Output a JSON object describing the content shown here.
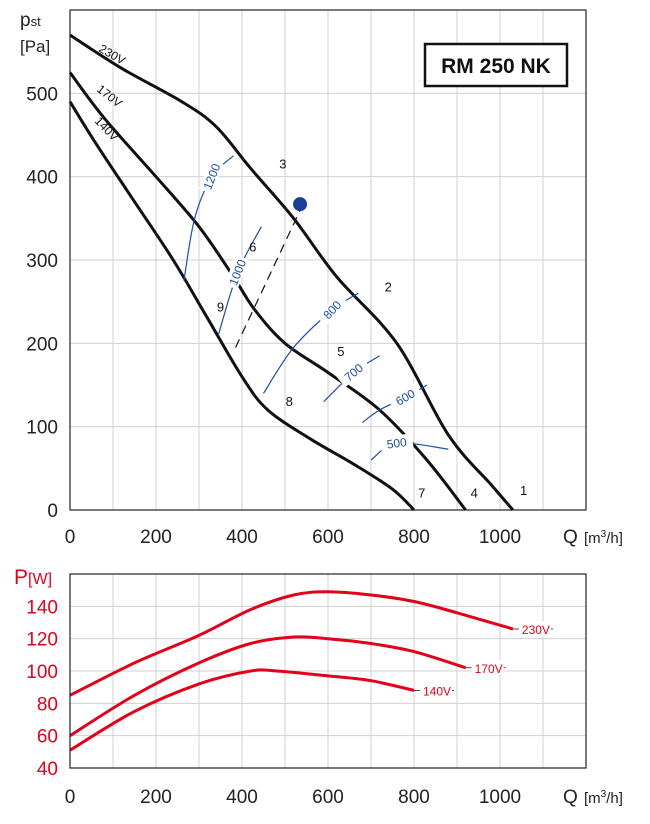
{
  "chart_data": [
    {
      "type": "line",
      "title": "RM 250 NK",
      "ylabel_main": "p",
      "ylabel_sub": "st",
      "ylabel_unit": "[Pa]",
      "xlabel": "Q",
      "xlabel_unit_pre": "[m",
      "xlabel_unit_sup": "3",
      "xlabel_unit_post": "/h]",
      "xlim": [
        0,
        1200
      ],
      "ylim": [
        0,
        600
      ],
      "xticks": [
        0,
        200,
        400,
        600,
        800,
        1000
      ],
      "yticks": [
        0,
        100,
        200,
        300,
        400,
        500
      ],
      "grid": true,
      "series": [
        {
          "name": "230V",
          "x": [
            0,
            120,
            260,
            340,
            420,
            520,
            620,
            760,
            880,
            980,
            1030
          ],
          "y": [
            570,
            530,
            490,
            460,
            410,
            350,
            280,
            200,
            90,
            30,
            0
          ]
        },
        {
          "name": "170V",
          "x": [
            0,
            80,
            200,
            300,
            380,
            430,
            500,
            600,
            720,
            830,
            920
          ],
          "y": [
            525,
            470,
            400,
            340,
            280,
            240,
            200,
            165,
            120,
            60,
            0
          ]
        },
        {
          "name": "140V",
          "x": [
            0,
            60,
            150,
            240,
            320,
            400,
            460,
            560,
            660,
            750,
            800
          ],
          "y": [
            490,
            440,
            370,
            300,
            230,
            160,
            120,
            85,
            55,
            25,
            0
          ]
        }
      ],
      "speed_lines": [
        {
          "label": "1200",
          "x": [
            265,
            290,
            330,
            380
          ],
          "y": [
            275,
            350,
            400,
            425
          ]
        },
        {
          "label": "1000",
          "x": [
            345,
            390,
            445
          ],
          "y": [
            210,
            285,
            340
          ]
        },
        {
          "label": "800",
          "x": [
            450,
            520,
            610,
            670
          ],
          "y": [
            140,
            195,
            240,
            260
          ]
        },
        {
          "label": "700",
          "x": [
            590,
            660,
            720
          ],
          "y": [
            130,
            165,
            185
          ]
        },
        {
          "label": "600",
          "x": [
            680,
            720,
            780,
            830
          ],
          "y": [
            105,
            120,
            135,
            150
          ]
        },
        {
          "label": "500",
          "x": [
            700,
            760,
            880
          ],
          "y": [
            60,
            80,
            73
          ]
        }
      ],
      "system_line": {
        "x": [
          385,
          540
        ],
        "y": [
          195,
          365
        ]
      },
      "operating_point": {
        "x": 535,
        "y": 367
      },
      "point_labels": [
        {
          "label": "1",
          "x": 1055,
          "y": 18
        },
        {
          "label": "2",
          "x": 740,
          "y": 262
        },
        {
          "label": "3",
          "x": 495,
          "y": 410
        },
        {
          "label": "4",
          "x": 940,
          "y": 15
        },
        {
          "label": "5",
          "x": 630,
          "y": 185
        },
        {
          "label": "6",
          "x": 425,
          "y": 310
        },
        {
          "label": "7",
          "x": 818,
          "y": 15
        },
        {
          "label": "8",
          "x": 510,
          "y": 125
        },
        {
          "label": "9",
          "x": 350,
          "y": 238
        }
      ]
    },
    {
      "type": "line",
      "ylabel_main": "P",
      "ylabel_unit": "[W]",
      "xlabel": "Q",
      "xlabel_unit_pre": "[m",
      "xlabel_unit_sup": "3",
      "xlabel_unit_post": "/h]",
      "xlim": [
        0,
        1200
      ],
      "ylim": [
        40,
        160
      ],
      "xticks": [
        0,
        200,
        400,
        600,
        800,
        1000
      ],
      "yticks": [
        40,
        60,
        80,
        100,
        120,
        140
      ],
      "grid": true,
      "series": [
        {
          "name": "230V",
          "x": [
            0,
            150,
            300,
            420,
            520,
            600,
            700,
            800,
            900,
            1030
          ],
          "y": [
            85,
            105,
            122,
            138,
            147,
            149,
            147,
            143,
            136,
            126
          ]
        },
        {
          "name": "170V",
          "x": [
            0,
            150,
            300,
            420,
            520,
            600,
            700,
            800,
            920
          ],
          "y": [
            60,
            85,
            105,
            117,
            121,
            120,
            117,
            112,
            102
          ]
        },
        {
          "name": "140V",
          "x": [
            0,
            150,
            300,
            420,
            480,
            600,
            700,
            800
          ],
          "y": [
            51,
            75,
            92,
            100,
            100,
            97,
            94,
            88
          ]
        }
      ]
    }
  ]
}
